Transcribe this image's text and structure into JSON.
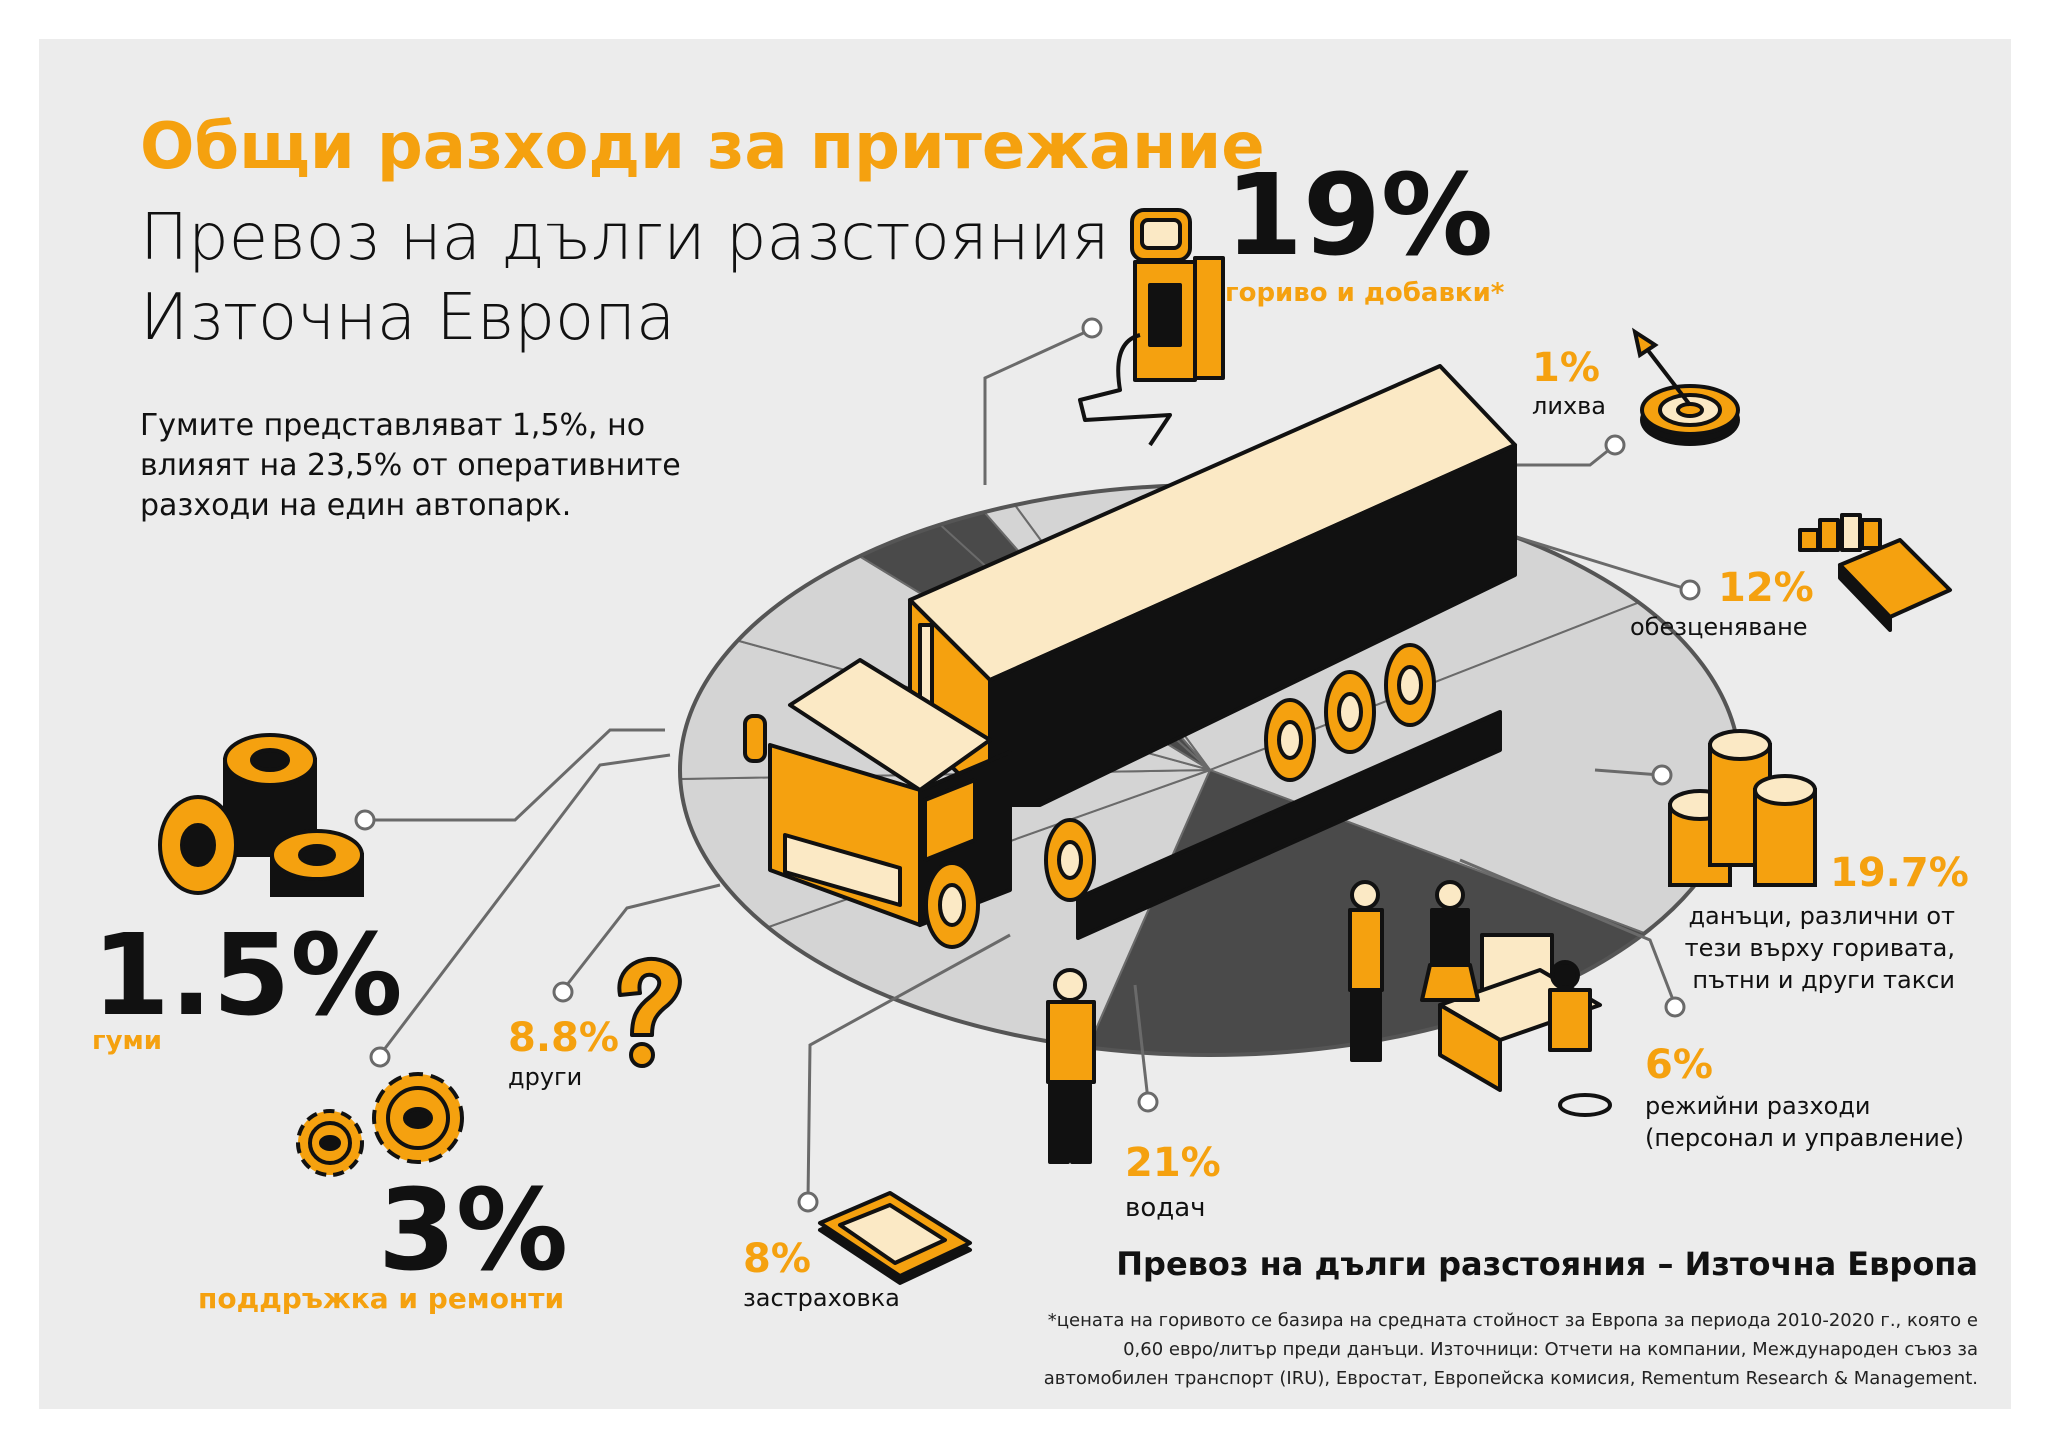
{
  "header": {
    "title": "Общи разходи за притежание",
    "subtitle_line1": "Превоз на дълги разстояния",
    "subtitle_line2": "Източна Европа"
  },
  "note": "Гумите представляват 1,5%, но влияят на 23,5% от оперативните разходи на един автопарк.",
  "items": [
    {
      "value": "19%",
      "label": "гориво и добавки*",
      "icon": "fuel-pump-icon"
    },
    {
      "value": "1%",
      "label": "лихва",
      "icon": "target-icon"
    },
    {
      "value": "12%",
      "label": "обезценяване",
      "icon": "calculator-icon"
    },
    {
      "value": "19.7%",
      "label_lines": [
        "данъци, различни от",
        "тези върху горивата,",
        "пътни и други такси"
      ],
      "icon": "coins-icon"
    },
    {
      "value": "6%",
      "label_lines": [
        "режийни разходи",
        "(персонал и управление)"
      ],
      "icon": "office-icon"
    },
    {
      "value": "21%",
      "label": "водач",
      "icon": "driver-icon"
    },
    {
      "value": "8%",
      "label": "застраховка",
      "icon": "document-icon"
    },
    {
      "value": "8.8%",
      "label": "други",
      "icon": "question-icon"
    },
    {
      "value": "3%",
      "label": "поддръжка и ремонти",
      "icon": "gears-icon"
    },
    {
      "value": "1.5%",
      "label": "гуми",
      "icon": "tires-icon"
    }
  ],
  "footer": {
    "title": "Превоз на дълги разстояния – Източна Европа",
    "footnote": "*цената на горивото се базира на средната стойност за Европа за периода 2010-2020 г., която е 0,60 евро/литър преди данъци. Източници: Отчети на компании, Международен съюз за автомобилен транспорт (IRU), Евростат, Европейска комисия, Rementum Research & Management."
  },
  "chart_data": {
    "type": "pie",
    "categories": [
      "водач",
      "данъци, различни от тези върху горивата, пътни и други такси",
      "гориво и добавки",
      "обезценяване",
      "други",
      "застраховка",
      "режийни разходи",
      "поддръжка и ремонти",
      "гуми",
      "лихва"
    ],
    "values": [
      21,
      19.7,
      19,
      12,
      8.8,
      8,
      6,
      3,
      1.5,
      1
    ],
    "colors": {
      "accent": "#f5a10f",
      "dark": "#111111",
      "pie_light": "#d4d4d4",
      "pie_dark": "#4a4a4a",
      "panel": "#ececec"
    }
  }
}
